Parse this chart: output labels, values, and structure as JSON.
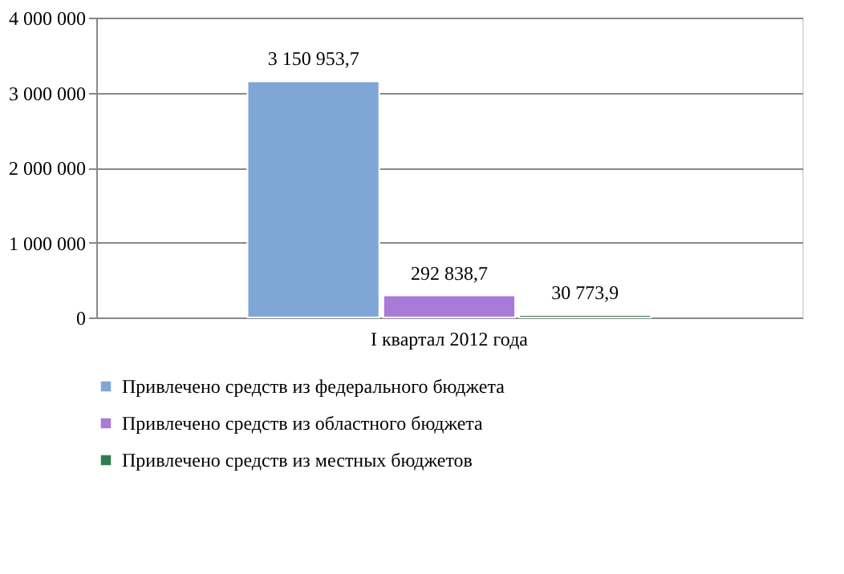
{
  "chart_data": {
    "type": "bar",
    "categories": [
      "I квартал 2012 года"
    ],
    "series": [
      {
        "name": "Привлечено средств из федерального бюджета",
        "color": "#7fa7d6",
        "values": [
          3150953.7
        ],
        "value_labels": [
          "3 150 953,7"
        ]
      },
      {
        "name": "Привлечено средств из областного бюджета",
        "color": "#a97ad8",
        "values": [
          292838.7
        ],
        "value_labels": [
          "292 838,7"
        ]
      },
      {
        "name": "Привлечено средств из местных бюджетов",
        "color": "#2e7d4f",
        "values": [
          30773.9
        ],
        "value_labels": [
          "30 773,9"
        ]
      }
    ],
    "ylim": [
      0,
      4000000
    ],
    "yticks": [
      0,
      {
        "value": 1000000,
        "label": "1 000 000"
      },
      {
        "value": 2000000,
        "label": "2 000 000"
      },
      {
        "value": 3000000,
        "label": "3 000 000"
      },
      {
        "value": 4000000,
        "label": "4 000 000"
      }
    ],
    "grid": "y",
    "legend": "bottom"
  }
}
